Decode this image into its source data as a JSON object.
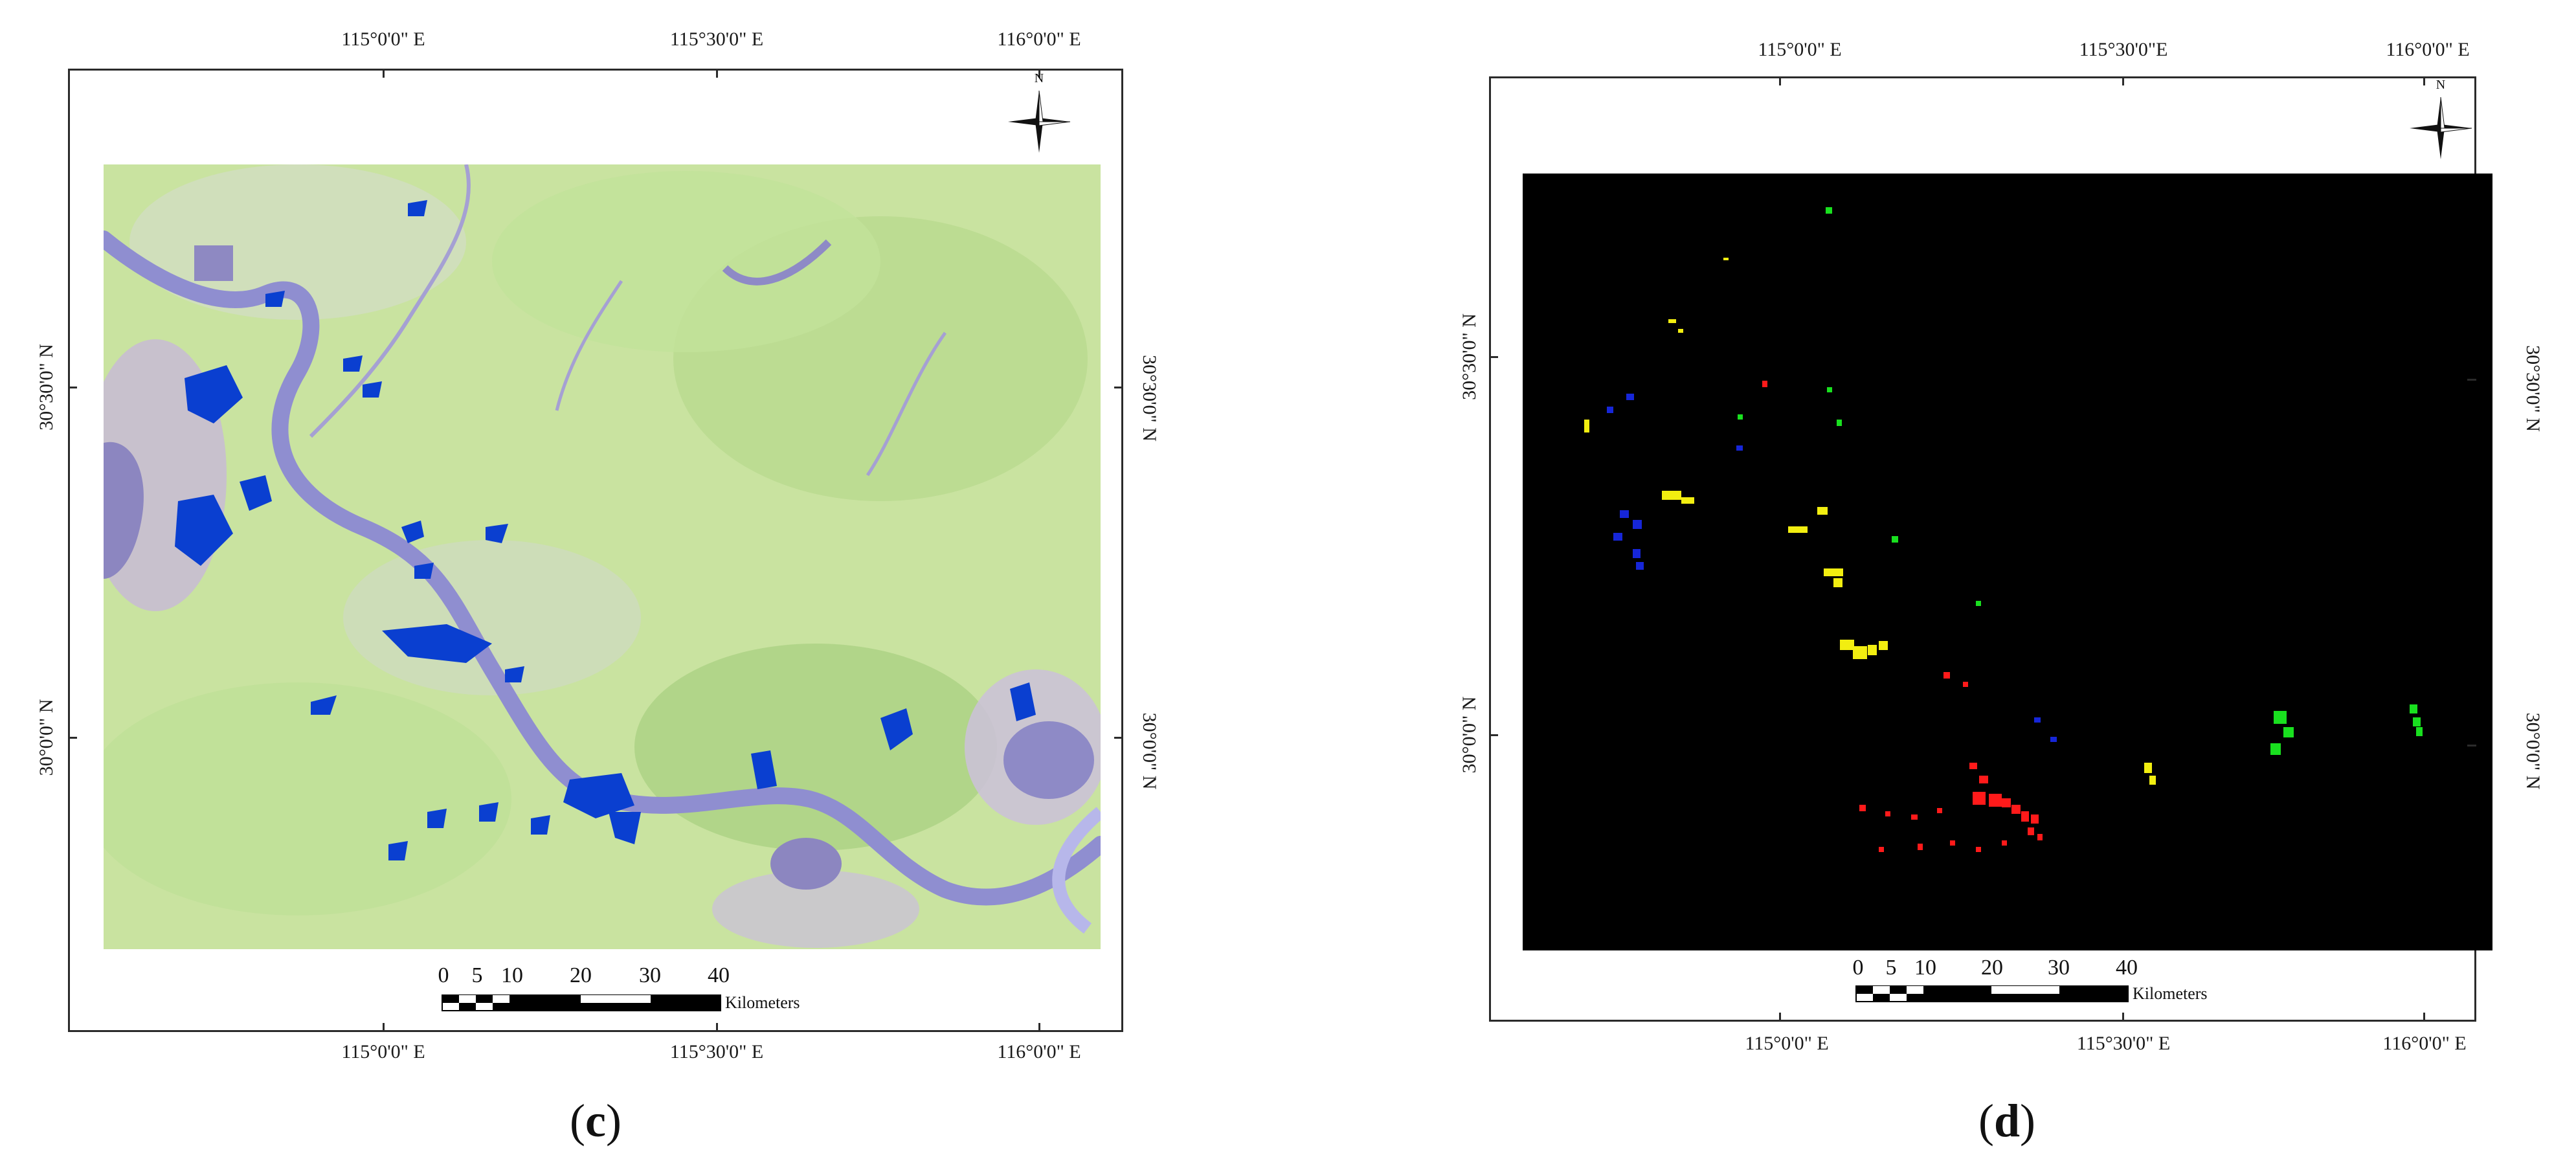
{
  "panels": [
    {
      "label_open": "(",
      "label_letter": "c",
      "label_close": ")",
      "top_longitudes": [
        "115°0'0\" E",
        "115°30'0\" E",
        "116°0'0\" E"
      ],
      "bottom_longitudes": [
        "115°0'0\" E",
        "115°30'0\" E",
        "116°0'0\" E"
      ],
      "left_latitudes": [
        "30°30'0\" N",
        "30°0'0\" N"
      ],
      "right_latitudes": [
        "30°30'0\" N",
        "30°0'0\" N"
      ],
      "scale_numbers": [
        "0",
        "5",
        "10",
        "20",
        "30",
        "40"
      ],
      "scale_unit": "Kilometers",
      "compass_letter": "N"
    },
    {
      "label_open": "(",
      "label_letter": "d",
      "label_close": ")",
      "top_longitudes": [
        "115°0'0\" E",
        "115°30'0\"E",
        "116°0'0\" E"
      ],
      "bottom_longitudes": [
        "115°0'0\" E",
        "115°30'0\" E",
        "116°0'0\" E"
      ],
      "left_latitudes": [
        "30°30'0\" N",
        "30°0'0\" N"
      ],
      "right_latitudes": [
        "30°30'0\" N",
        "30°0'0\" N"
      ],
      "scale_numbers": [
        "0",
        "5",
        "10",
        "20",
        "30",
        "40"
      ],
      "scale_unit": "Kilometers",
      "compass_letter": "N"
    }
  ],
  "colors": {
    "land_light": "#c9e3a0",
    "land_mid": "#a9cf86",
    "river": "#8f8ed0",
    "lake": "#0a3fd0",
    "urban": "#c7b9cf",
    "classification_bg": "#000000",
    "class_red": "#ff1a1a",
    "class_yellow": "#f2ee10",
    "class_green": "#19e01f",
    "class_blue": "#1626d8"
  }
}
